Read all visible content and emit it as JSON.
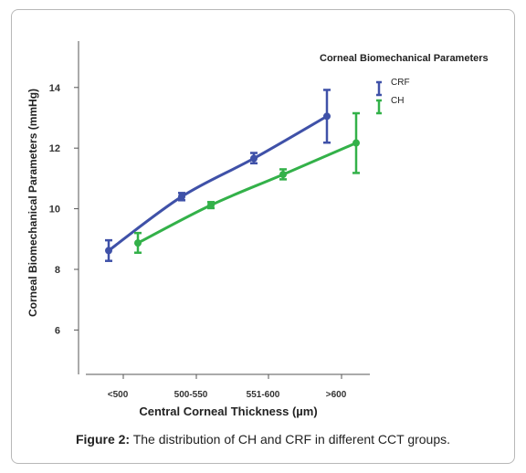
{
  "chart_data": {
    "type": "line",
    "title": "Corneal Biomechanical Parameters",
    "xlabel": "Central Corneal Thickness (µm)",
    "ylabel": "Corneal Biomechanical Parameters  (mmHg)",
    "categories": [
      "<500",
      "500-550",
      "551-600",
      ">600"
    ],
    "yticks": [
      6,
      8,
      10,
      12,
      14
    ],
    "ylim": [
      4.5,
      15.5
    ],
    "legend_position": "top-right",
    "series": [
      {
        "name": "CRF",
        "color": "#3f51a8",
        "values": [
          8.62,
          10.4,
          11.66,
          13.05
        ],
        "error_low": [
          8.28,
          10.28,
          11.5,
          12.18
        ],
        "error_high": [
          8.96,
          10.52,
          11.84,
          13.92
        ]
      },
      {
        "name": "CH",
        "color": "#33b149",
        "values": [
          8.87,
          10.12,
          11.13,
          12.17
        ],
        "error_low": [
          8.55,
          10.02,
          10.97,
          11.18
        ],
        "error_high": [
          9.2,
          10.22,
          11.3,
          13.15
        ]
      }
    ]
  },
  "caption": {
    "label": "Figure 2:",
    "text": " The distribution of CH and CRF in different CCT groups."
  }
}
